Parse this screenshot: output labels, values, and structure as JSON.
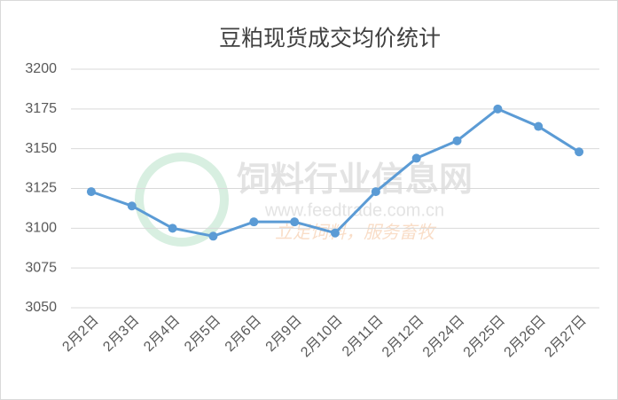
{
  "chart_data": {
    "type": "line",
    "title": "豆粕现货成交均价统计",
    "categories": [
      "2月2日",
      "2月3日",
      "2月4日",
      "2月5日",
      "2月6日",
      "2月9日",
      "2月10日",
      "2月11日",
      "2月12日",
      "2月24日",
      "2月25日",
      "2月26日",
      "2月27日"
    ],
    "series": [
      {
        "name": "豆粕现货成交均价",
        "color": "#5b9bd5",
        "values": [
          3123,
          3114,
          3100,
          3095,
          3104,
          3104,
          3097,
          3123,
          3144,
          3155,
          3175,
          3164,
          3148
        ]
      }
    ],
    "ylim": [
      3050,
      3200
    ],
    "yticks": [
      3050,
      3075,
      3100,
      3125,
      3150,
      3175,
      3200
    ],
    "grid": true,
    "watermark": [
      "饲料行业信息网",
      "www.feedtrade.com.cn",
      "立足饲料，服务畜牧"
    ]
  }
}
